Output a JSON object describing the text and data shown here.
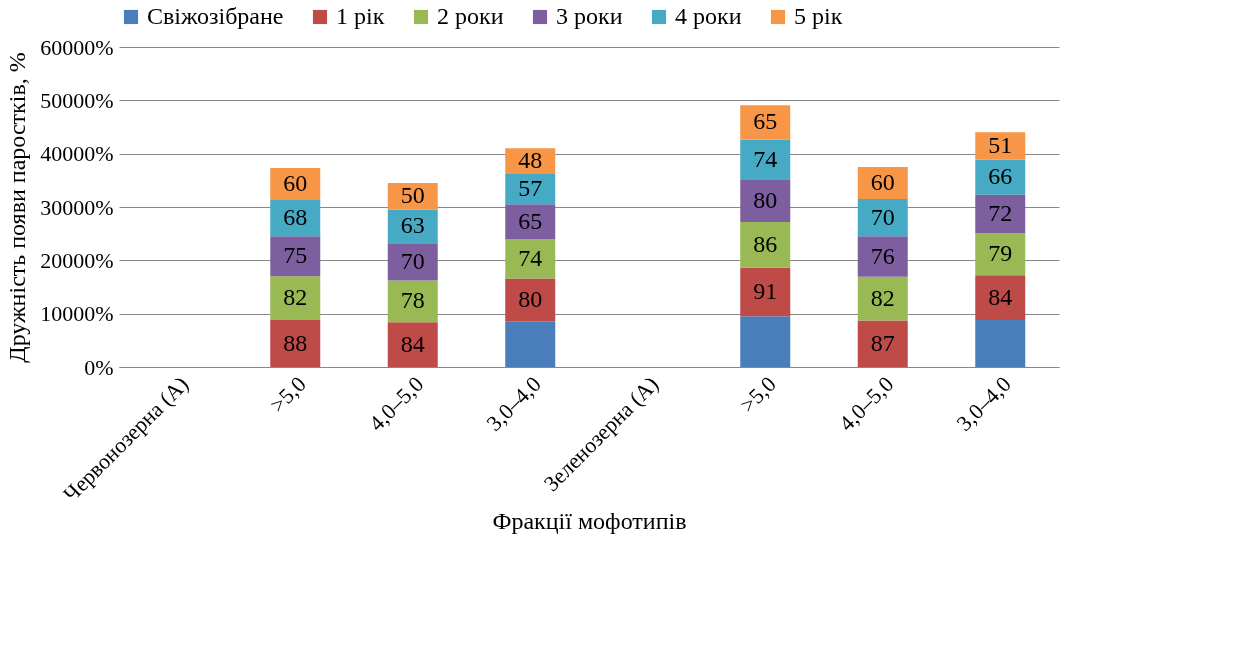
{
  "chart_data": {
    "type": "bar",
    "stacked": true,
    "xlabel": "Фракції мофотипів",
    "ylabel": "Дружність появи паростків, %",
    "categories": [
      "Червонозерна (А)",
      ">5,0",
      "4,0–5,0",
      "3,0–4,0",
      "Зеленозерна (А)",
      ">5,0",
      "4,0–5,0",
      "3,0–4,0"
    ],
    "ylim": [
      0,
      600
    ],
    "yticks": [
      {
        "value": 0,
        "label": "0%"
      },
      {
        "value": 100,
        "label": "10000%"
      },
      {
        "value": 200,
        "label": "20000%"
      },
      {
        "value": 300,
        "label": "30000%"
      },
      {
        "value": 400,
        "label": "40000%"
      },
      {
        "value": 500,
        "label": "50000%"
      },
      {
        "value": 600,
        "label": "60000%"
      }
    ],
    "grid": "y",
    "legend": "top",
    "series": [
      {
        "name": "Свіжозібране",
        "color": "#4a7ebb",
        "values": [
          null,
          null,
          null,
          86,
          null,
          95,
          null,
          88
        ]
      },
      {
        "name": "1 рік",
        "color": "#be4b48",
        "values": [
          null,
          88,
          84,
          80,
          null,
          91,
          87,
          84
        ],
        "value_labels": [
          null,
          "88",
          "84",
          "80",
          null,
          "91",
          "87",
          "84"
        ]
      },
      {
        "name": "2 роки",
        "color": "#98b954",
        "values": [
          null,
          82,
          78,
          74,
          null,
          86,
          82,
          79
        ],
        "value_labels": [
          null,
          "82",
          "78",
          "74",
          null,
          "86",
          "82",
          "79"
        ]
      },
      {
        "name": "3 роки",
        "color": "#7d5fa0",
        "values": [
          null,
          75,
          70,
          65,
          null,
          80,
          76,
          72
        ],
        "value_labels": [
          null,
          "75",
          "70",
          "65",
          null,
          "80",
          "76",
          "72"
        ]
      },
      {
        "name": "4 роки",
        "color": "#46aac5",
        "values": [
          null,
          68,
          63,
          57,
          null,
          74,
          70,
          66
        ],
        "value_labels": [
          null,
          "68",
          "63",
          "57",
          null,
          "74",
          "70",
          "66"
        ]
      },
      {
        "name": "5 рік",
        "color": "#f79646",
        "values": [
          null,
          60,
          50,
          48,
          null,
          65,
          60,
          51
        ],
        "value_labels": [
          null,
          "60",
          "50",
          "48",
          null,
          "65",
          "60",
          "51"
        ]
      }
    ]
  }
}
